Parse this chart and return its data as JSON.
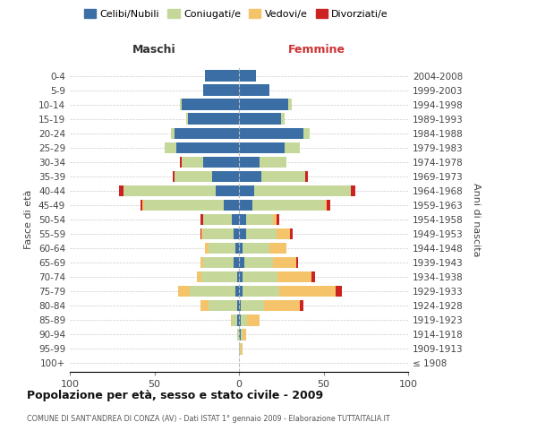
{
  "age_groups": [
    "100+",
    "95-99",
    "90-94",
    "85-89",
    "80-84",
    "75-79",
    "70-74",
    "65-69",
    "60-64",
    "55-59",
    "50-54",
    "45-49",
    "40-44",
    "35-39",
    "30-34",
    "25-29",
    "20-24",
    "15-19",
    "10-14",
    "5-9",
    "0-4"
  ],
  "birth_years": [
    "≤ 1908",
    "1909-1913",
    "1914-1918",
    "1919-1923",
    "1924-1928",
    "1929-1933",
    "1934-1938",
    "1939-1943",
    "1944-1948",
    "1949-1953",
    "1954-1958",
    "1959-1963",
    "1964-1968",
    "1969-1973",
    "1974-1978",
    "1979-1983",
    "1984-1988",
    "1989-1993",
    "1994-1998",
    "1999-2003",
    "2004-2008"
  ],
  "males_celibi": [
    0,
    0,
    0,
    1,
    1,
    2,
    1,
    3,
    2,
    3,
    4,
    9,
    14,
    16,
    21,
    37,
    38,
    30,
    34,
    21,
    20
  ],
  "males_coniugati": [
    0,
    0,
    1,
    3,
    17,
    27,
    21,
    18,
    16,
    18,
    17,
    47,
    54,
    22,
    13,
    7,
    2,
    1,
    1,
    0,
    0
  ],
  "males_vedovi": [
    0,
    0,
    0,
    1,
    5,
    7,
    3,
    2,
    2,
    1,
    0,
    1,
    0,
    0,
    0,
    0,
    0,
    0,
    0,
    0,
    0
  ],
  "males_divorziati": [
    0,
    0,
    0,
    0,
    0,
    0,
    0,
    0,
    0,
    1,
    2,
    1,
    3,
    1,
    1,
    0,
    0,
    0,
    0,
    0,
    0
  ],
  "females_nubili": [
    0,
    0,
    1,
    1,
    1,
    2,
    2,
    3,
    2,
    4,
    4,
    8,
    9,
    13,
    12,
    27,
    38,
    25,
    29,
    18,
    10
  ],
  "females_coniugate": [
    0,
    1,
    1,
    4,
    14,
    22,
    21,
    17,
    16,
    18,
    16,
    43,
    57,
    26,
    16,
    9,
    4,
    2,
    2,
    0,
    0
  ],
  "females_vedove": [
    0,
    1,
    2,
    7,
    21,
    33,
    20,
    14,
    10,
    8,
    2,
    1,
    0,
    0,
    0,
    0,
    0,
    0,
    0,
    0,
    0
  ],
  "females_divorziate": [
    0,
    0,
    0,
    0,
    2,
    4,
    2,
    1,
    0,
    2,
    2,
    2,
    3,
    2,
    0,
    0,
    0,
    0,
    0,
    0,
    0
  ],
  "color_celibi": "#3a6ea5",
  "color_coniugati": "#c5d89a",
  "color_vedovi": "#f5c46a",
  "color_divorziati": "#cc2222",
  "xlim": [
    -100,
    100
  ],
  "xticks": [
    -100,
    -50,
    0,
    50,
    100
  ],
  "xticklabels": [
    "100",
    "50",
    "0",
    "50",
    "100"
  ],
  "title": "Popolazione per età, sesso e stato civile - 2009",
  "subtitle": "COMUNE DI SANT'ANDREA DI CONZA (AV) - Dati ISTAT 1° gennaio 2009 - Elaborazione TUTTAITALIA.IT",
  "ylabel_left": "Fasce di età",
  "ylabel_right": "Anni di nascita",
  "maschi_label": "Maschi",
  "femmine_label": "Femmine",
  "legend_labels": [
    "Celibi/Nubili",
    "Coniugati/e",
    "Vedovi/e",
    "Divorziati/e"
  ],
  "bg_color": "#ffffff",
  "grid_color": "#cccccc"
}
